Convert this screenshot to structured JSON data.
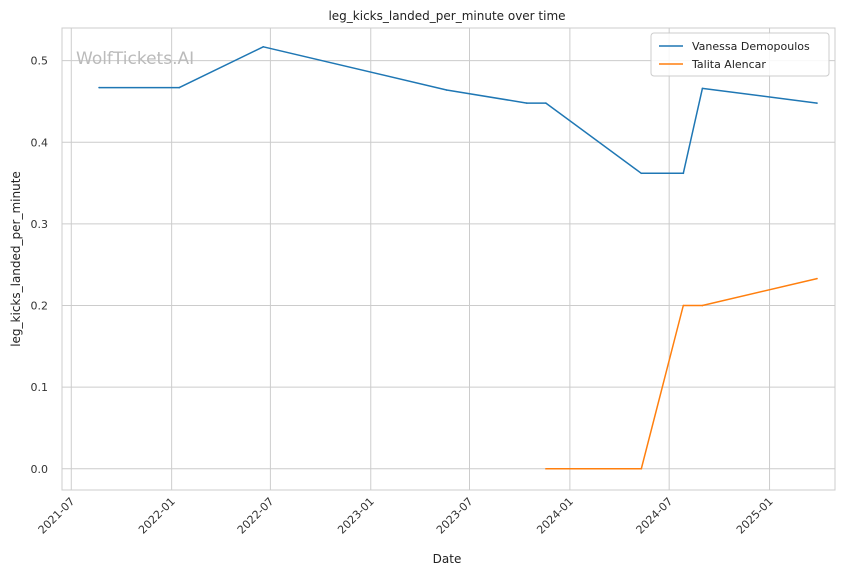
{
  "chart_data": {
    "type": "line",
    "title": "leg_kicks_landed_per_minute over time",
    "xlabel": "Date",
    "ylabel": "leg_kicks_landed_per_minute",
    "watermark": "WolfTickets.AI",
    "xlim": [
      "2021-06-14",
      "2025-05-01"
    ],
    "ylim": [
      -0.026,
      0.54
    ],
    "x_ticks": [
      "2021-07",
      "2022-01",
      "2022-07",
      "2023-01",
      "2023-07",
      "2024-01",
      "2024-07",
      "2025-01"
    ],
    "y_ticks": [
      "0.0",
      "0.1",
      "0.2",
      "0.3",
      "0.4",
      "0.5"
    ],
    "grid": true,
    "legend_position": "top-right",
    "series": [
      {
        "name": "Vanessa Demopoulos",
        "color": "#1f77b4",
        "x": [
          "2021-08-21",
          "2022-01-15",
          "2022-06-18",
          "2023-05-20",
          "2023-10-14",
          "2023-11-18",
          "2024-05-11",
          "2024-07-27",
          "2024-08-31",
          "2025-03-29"
        ],
        "y": [
          0.467,
          0.467,
          0.517,
          0.464,
          0.448,
          0.448,
          0.362,
          0.362,
          0.466,
          0.448
        ]
      },
      {
        "name": "Talita Alencar",
        "color": "#ff7f0e",
        "x": [
          "2023-11-18",
          "2024-05-11",
          "2024-07-27",
          "2024-08-31",
          "2025-03-29"
        ],
        "y": [
          0.0,
          0.0,
          0.2,
          0.2,
          0.233
        ]
      }
    ]
  }
}
